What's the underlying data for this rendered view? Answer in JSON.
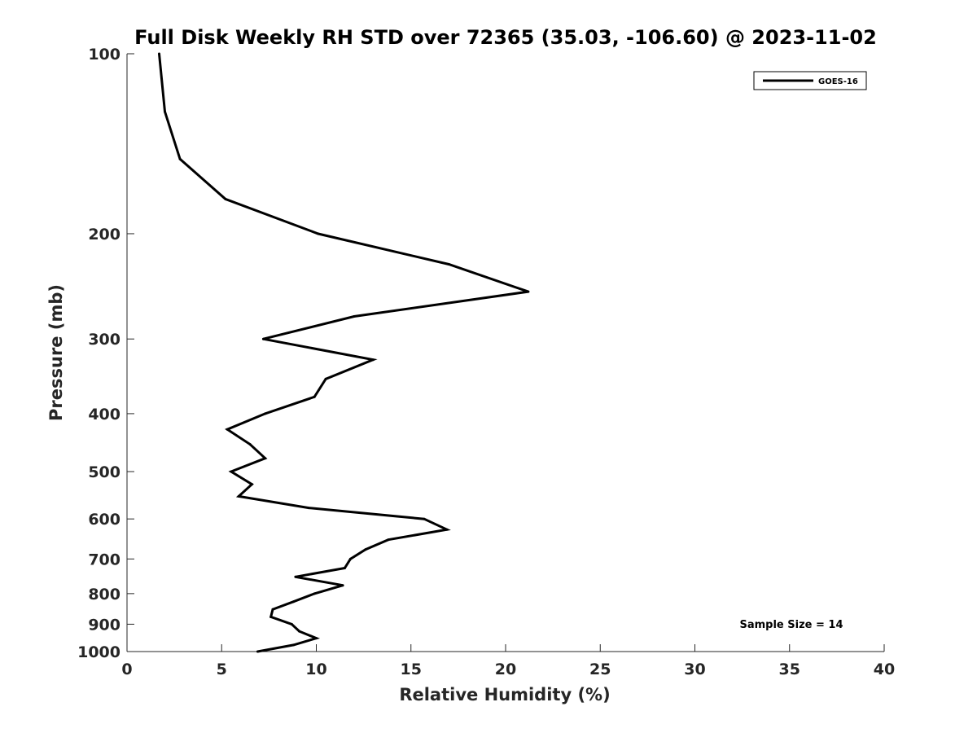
{
  "chart_data": {
    "type": "line",
    "title": "Full Disk Weekly RH STD over 72365 (35.03, -106.60) @ 2023-11-02",
    "xlabel": "Relative Humidity (%)",
    "ylabel": "Pressure (mb)",
    "xlim": [
      0,
      40
    ],
    "ylim": [
      100,
      1000
    ],
    "y_scale": "log",
    "y_reversed": true,
    "grid": false,
    "legend_position": "top-right",
    "x_ticks": [
      "0",
      "5",
      "10",
      "15",
      "20",
      "25",
      "30",
      "35",
      "40"
    ],
    "y_ticks": [
      "100",
      "200",
      "300",
      "400",
      "500",
      "600",
      "700",
      "800",
      "900",
      "1000"
    ],
    "annotation": "Sample Size = 14",
    "series": [
      {
        "name": "GOES-16",
        "color": "#000000",
        "points": [
          {
            "rh": 1.7,
            "p": 100
          },
          {
            "rh": 2.0,
            "p": 125
          },
          {
            "rh": 2.8,
            "p": 150
          },
          {
            "rh": 5.2,
            "p": 175
          },
          {
            "rh": 10.1,
            "p": 200
          },
          {
            "rh": 17.0,
            "p": 225
          },
          {
            "rh": 21.2,
            "p": 250
          },
          {
            "rh": 12.0,
            "p": 275
          },
          {
            "rh": 7.2,
            "p": 300
          },
          {
            "rh": 13.0,
            "p": 325
          },
          {
            "rh": 10.5,
            "p": 350
          },
          {
            "rh": 9.9,
            "p": 375
          },
          {
            "rh": 7.3,
            "p": 400
          },
          {
            "rh": 5.3,
            "p": 425
          },
          {
            "rh": 6.5,
            "p": 450
          },
          {
            "rh": 7.3,
            "p": 475
          },
          {
            "rh": 5.5,
            "p": 500
          },
          {
            "rh": 6.6,
            "p": 525
          },
          {
            "rh": 5.9,
            "p": 550
          },
          {
            "rh": 9.6,
            "p": 575
          },
          {
            "rh": 15.7,
            "p": 600
          },
          {
            "rh": 16.9,
            "p": 625
          },
          {
            "rh": 13.8,
            "p": 650
          },
          {
            "rh": 12.6,
            "p": 675
          },
          {
            "rh": 11.8,
            "p": 700
          },
          {
            "rh": 11.5,
            "p": 725
          },
          {
            "rh": 8.9,
            "p": 750
          },
          {
            "rh": 11.4,
            "p": 775
          },
          {
            "rh": 9.9,
            "p": 800
          },
          {
            "rh": 8.8,
            "p": 825
          },
          {
            "rh": 7.7,
            "p": 850
          },
          {
            "rh": 7.6,
            "p": 875
          },
          {
            "rh": 8.7,
            "p": 900
          },
          {
            "rh": 9.1,
            "p": 925
          },
          {
            "rh": 10.0,
            "p": 950
          },
          {
            "rh": 8.8,
            "p": 975
          },
          {
            "rh": 6.9,
            "p": 1000
          }
        ]
      }
    ]
  }
}
